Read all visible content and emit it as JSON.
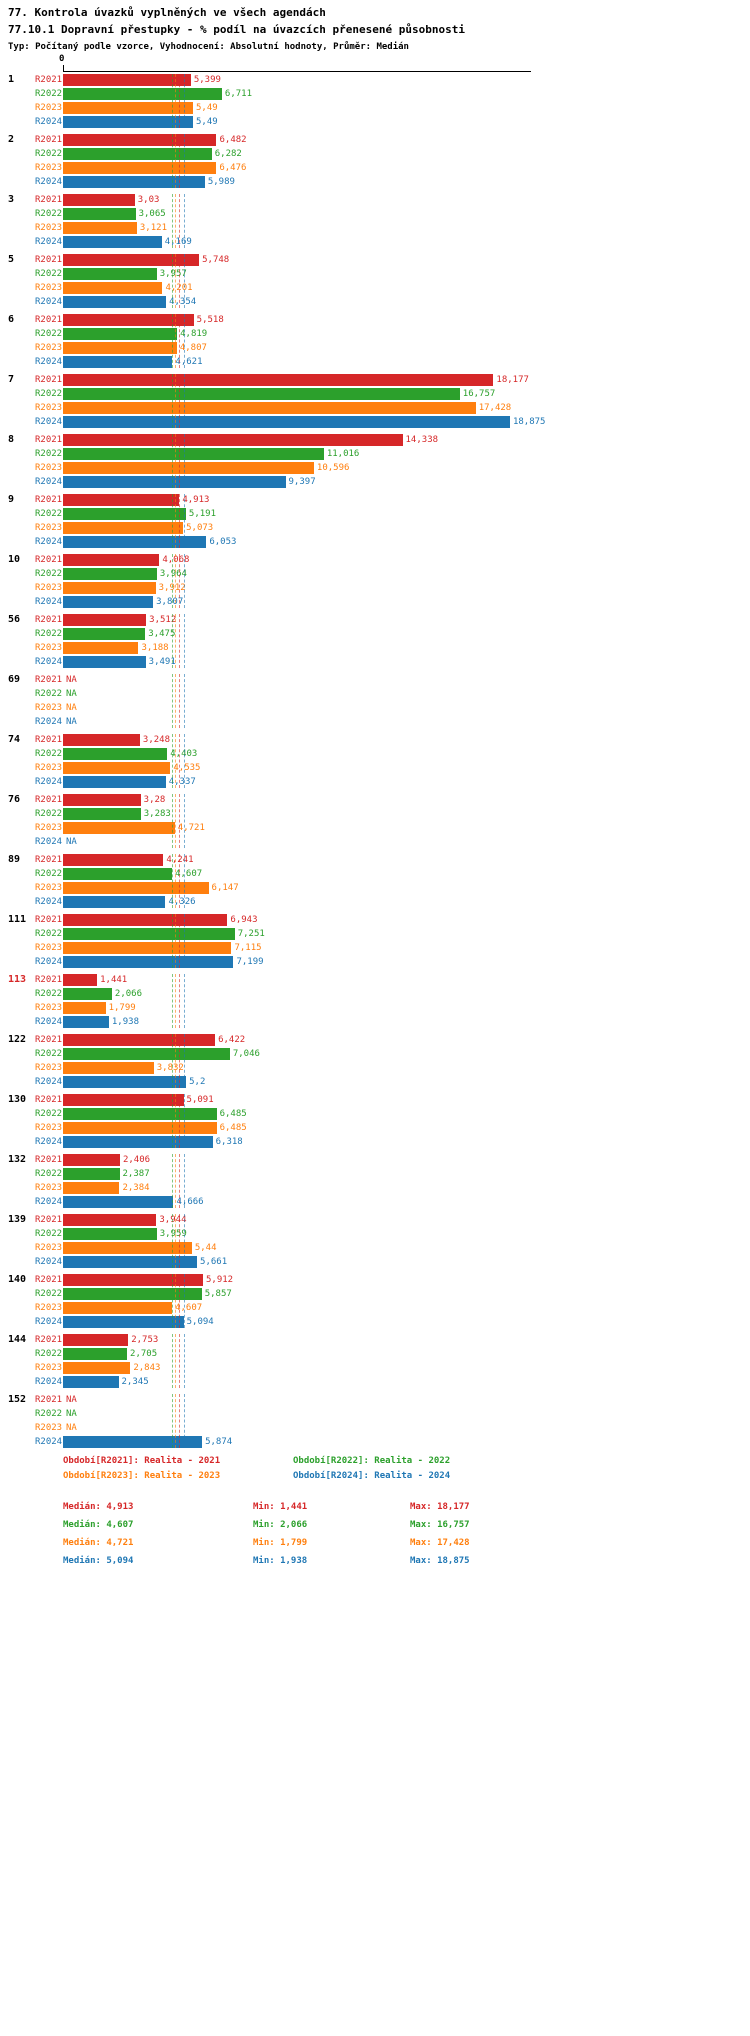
{
  "title": "77. Kontrola úvazků vyplněných ve všech agendách",
  "subtitle": "77.10.1 Dopravní přestupky - % podíl na úvazcích přenesené působnosti",
  "meta": "Typ: Počítaný podle vzorce, Vyhodnocení: Absolutní hodnoty, Průměr: Medián",
  "chart_data": {
    "type": "bar",
    "orientation": "horizontal",
    "value_format": "czech-decimal-comma",
    "x_range": [
      0,
      19.75
    ],
    "grid": false,
    "x_axis": {
      "origin_label": "0"
    },
    "stats_labels": {
      "median": "Medián",
      "min": "Min",
      "max": "Max"
    },
    "series": [
      {
        "name": "R2021",
        "color": "#d62728",
        "legend": "Období[R2021]: Realita - 2021",
        "median": "4,913",
        "min": "1,441",
        "max": "18,177"
      },
      {
        "name": "R2022",
        "color": "#2ca02c",
        "legend": "Období[R2022]: Realita - 2022",
        "median": "4,607",
        "min": "2,066",
        "max": "16,757"
      },
      {
        "name": "R2023",
        "color": "#ff7f0e",
        "legend": "Období[R2023]: Realita - 2023",
        "median": "4,721",
        "min": "1,799",
        "max": "17,428"
      },
      {
        "name": "R2024",
        "color": "#1f77b4",
        "legend": "Období[R2024]: Realita - 2024",
        "median": "5,094",
        "min": "1,938",
        "max": "18,875"
      }
    ],
    "groups": [
      {
        "id": "1",
        "highlight": false,
        "values": [
          "5,399",
          "6,711",
          "5,49",
          "5,49"
        ]
      },
      {
        "id": "2",
        "highlight": false,
        "values": [
          "6,482",
          "6,282",
          "6,476",
          "5,989"
        ]
      },
      {
        "id": "3",
        "highlight": false,
        "values": [
          "3,03",
          "3,065",
          "3,121",
          "4,169"
        ]
      },
      {
        "id": "5",
        "highlight": false,
        "values": [
          "5,748",
          "3,957",
          "4,201",
          "4,354"
        ]
      },
      {
        "id": "6",
        "highlight": false,
        "values": [
          "5,518",
          "4,819",
          "4,807",
          "4,621"
        ]
      },
      {
        "id": "7",
        "highlight": false,
        "values": [
          "18,177",
          "16,757",
          "17,428",
          "18,875"
        ]
      },
      {
        "id": "8",
        "highlight": false,
        "values": [
          "14,338",
          "11,016",
          "10,596",
          "9,397"
        ]
      },
      {
        "id": "9",
        "highlight": false,
        "values": [
          "4,913",
          "5,191",
          "5,073",
          "6,053"
        ]
      },
      {
        "id": "10",
        "highlight": false,
        "values": [
          "4,068",
          "3,964",
          "3,912",
          "3,807"
        ]
      },
      {
        "id": "56",
        "highlight": false,
        "values": [
          "3,512",
          "3,475",
          "3,188",
          "3,491"
        ]
      },
      {
        "id": "69",
        "highlight": false,
        "values": [
          "NA",
          "NA",
          "NA",
          "NA"
        ]
      },
      {
        "id": "74",
        "highlight": false,
        "values": [
          "3,248",
          "4,403",
          "4,535",
          "4,337"
        ]
      },
      {
        "id": "76",
        "highlight": false,
        "values": [
          "3,28",
          "3,283",
          "4,721",
          "NA"
        ]
      },
      {
        "id": "89",
        "highlight": false,
        "values": [
          "4,241",
          "4,607",
          "6,147",
          "4,326"
        ]
      },
      {
        "id": "111",
        "highlight": false,
        "values": [
          "6,943",
          "7,251",
          "7,115",
          "7,199"
        ]
      },
      {
        "id": "113",
        "highlight": true,
        "values": [
          "1,441",
          "2,066",
          "1,799",
          "1,938"
        ]
      },
      {
        "id": "122",
        "highlight": false,
        "values": [
          "6,422",
          "7,046",
          "3,832",
          "5,2"
        ]
      },
      {
        "id": "130",
        "highlight": false,
        "values": [
          "5,091",
          "6,485",
          "6,485",
          "6,318"
        ]
      },
      {
        "id": "132",
        "highlight": false,
        "values": [
          "2,406",
          "2,387",
          "2,384",
          "4,666"
        ]
      },
      {
        "id": "139",
        "highlight": false,
        "values": [
          "3,944",
          "3,959",
          "5,44",
          "5,661"
        ]
      },
      {
        "id": "140",
        "highlight": false,
        "values": [
          "5,912",
          "5,857",
          "4,607",
          "5,094"
        ]
      },
      {
        "id": "144",
        "highlight": false,
        "values": [
          "2,753",
          "2,705",
          "2,843",
          "2,345"
        ]
      },
      {
        "id": "152",
        "highlight": false,
        "values": [
          "NA",
          "NA",
          "NA",
          "5,874"
        ]
      }
    ]
  }
}
